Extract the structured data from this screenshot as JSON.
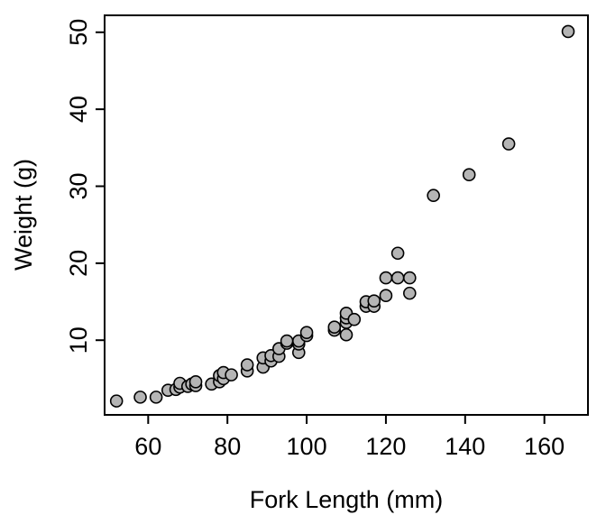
{
  "chart_data": {
    "type": "scatter",
    "title": "",
    "xlabel": "Fork Length (mm)",
    "ylabel": "Weight (g)",
    "xlim": [
      49,
      171
    ],
    "ylim": [
      0.3,
      52.2
    ],
    "xticks": [
      60,
      80,
      100,
      120,
      140,
      160
    ],
    "yticks": [
      10,
      20,
      30,
      40,
      50
    ],
    "grid": false,
    "legend": "none",
    "marker_fill": "#b5b5b5",
    "marker_edge": "#000000",
    "series": [
      {
        "points": [
          [
            52,
            2.1
          ],
          [
            58,
            2.6
          ],
          [
            62,
            2.6
          ],
          [
            65,
            3.5
          ],
          [
            67,
            3.6
          ],
          [
            68,
            3.9
          ],
          [
            68,
            4.4
          ],
          [
            70,
            4.0
          ],
          [
            71,
            4.3
          ],
          [
            72,
            4.1
          ],
          [
            72,
            4.6
          ],
          [
            76,
            4.3
          ],
          [
            78,
            4.6
          ],
          [
            78,
            5.4
          ],
          [
            79,
            5.0
          ],
          [
            79,
            5.8
          ],
          [
            81,
            5.5
          ],
          [
            85,
            6.0
          ],
          [
            85,
            6.8
          ],
          [
            89,
            6.5
          ],
          [
            89,
            7.7
          ],
          [
            91,
            7.3
          ],
          [
            91,
            8.0
          ],
          [
            93,
            7.9
          ],
          [
            93,
            8.9
          ],
          [
            95,
            9.6
          ],
          [
            95,
            9.9
          ],
          [
            98,
            8.4
          ],
          [
            98,
            9.5
          ],
          [
            98,
            9.9
          ],
          [
            100,
            10.6
          ],
          [
            100,
            11.0
          ],
          [
            107,
            11.3
          ],
          [
            107,
            11.7
          ],
          [
            110,
            10.7
          ],
          [
            110,
            12.3
          ],
          [
            110,
            12.9
          ],
          [
            110,
            13.5
          ],
          [
            112,
            12.7
          ],
          [
            115,
            14.4
          ],
          [
            115,
            15.0
          ],
          [
            117,
            14.4
          ],
          [
            117,
            15.1
          ],
          [
            120,
            15.8
          ],
          [
            120,
            18.1
          ],
          [
            123,
            18.1
          ],
          [
            123,
            21.3
          ],
          [
            126,
            16.1
          ],
          [
            126,
            18.1
          ],
          [
            132,
            28.8
          ],
          [
            141,
            31.5
          ],
          [
            151,
            35.5
          ],
          [
            166,
            50.1
          ]
        ]
      }
    ]
  }
}
